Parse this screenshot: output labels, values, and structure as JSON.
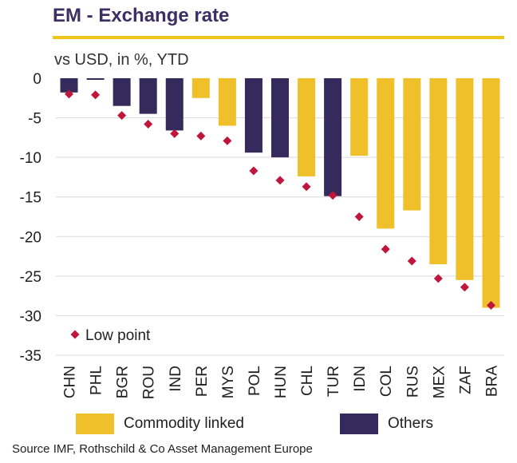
{
  "title": "EM - Exchange rate",
  "subtitle": "vs USD, in %, YTD",
  "source": "Source IMF, Rothschild & Co Asset Management Europe",
  "colors": {
    "commodity": "#f0c02a",
    "others": "#342b5c",
    "low_point": "#c0163c",
    "accent_rule": "#f0c419"
  },
  "chart_data": {
    "type": "bar",
    "categories": [
      "CHN",
      "PHL",
      "BGR",
      "ROU",
      "IND",
      "PER",
      "MYS",
      "POL",
      "HUN",
      "CHL",
      "TUR",
      "IDN",
      "COL",
      "RUS",
      "MEX",
      "ZAF",
      "BRA"
    ],
    "groups": [
      "Others",
      "Others",
      "Others",
      "Others",
      "Others",
      "Commodity linked",
      "Commodity linked",
      "Others",
      "Others",
      "Commodity linked",
      "Others",
      "Commodity linked",
      "Commodity linked",
      "Commodity linked",
      "Commodity linked",
      "Commodity linked",
      "Commodity linked"
    ],
    "series": [
      {
        "name": "",
        "type": "bar",
        "values": [
          -1.8,
          -0.2,
          -3.5,
          -4.5,
          -6.6,
          -2.5,
          -6.0,
          -9.4,
          -10.0,
          -12.4,
          -14.9,
          -9.8,
          -19.0,
          -16.7,
          -23.5,
          -25.5,
          -29.0
        ]
      },
      {
        "name": "Low point",
        "type": "scatter",
        "values": [
          -2.0,
          -2.1,
          -4.7,
          -5.8,
          -7.0,
          -7.3,
          -7.9,
          -11.7,
          -12.9,
          -13.7,
          -14.8,
          -17.5,
          -21.6,
          -23.1,
          -25.3,
          -26.4,
          -28.7
        ]
      }
    ],
    "legend": [
      {
        "name": "Commodity linked",
        "key": "commodity"
      },
      {
        "name": "Others",
        "key": "others"
      }
    ],
    "ylim": [
      -35,
      0
    ],
    "yticks": [
      0,
      -5,
      -10,
      -15,
      -20,
      -25,
      -30,
      -35
    ],
    "grid": true,
    "legend_placement": "bottom"
  }
}
